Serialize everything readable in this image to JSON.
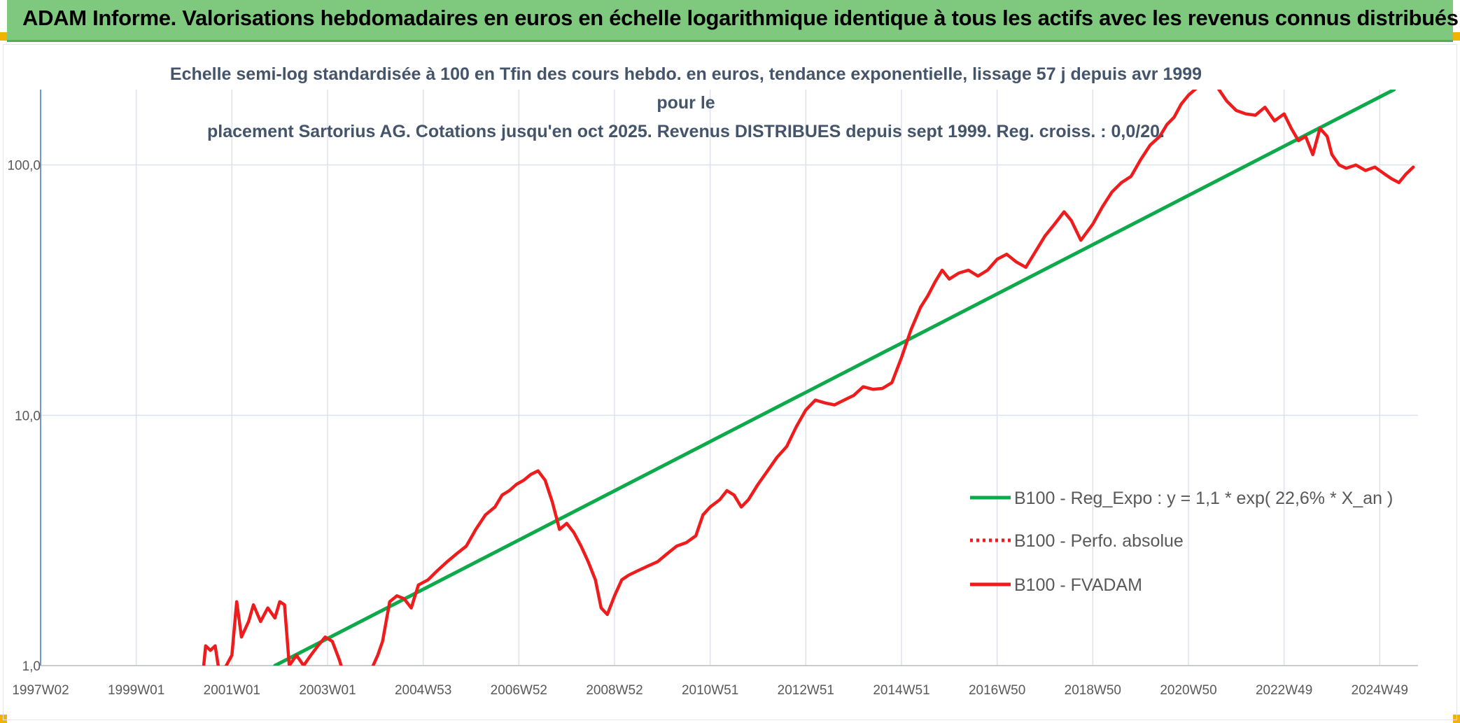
{
  "header": {
    "title": "ADAM Informe. Valorisations hebdomadaires en euros en échelle logarithmique identique à tous les actifs avec les revenus connus distribués"
  },
  "colors": {
    "title_bar": "#7fc97f",
    "trend_line": "#0ea94b",
    "fvadam_line": "#ee1c1c",
    "perfo_line": "#ee1c1c",
    "grid": "#dde2ea",
    "axis": "#4472c4"
  },
  "chart_data": {
    "type": "line",
    "title_line1": "Echelle semi-log standardisée à 100 en Tfin des cours hebdo. en euros, tendance exponentielle, lissage 57 j depuis avr 1999 pour le",
    "title_line2": "placement Sartorius AG. Cotations jusqu'en oct 2025. Revenus DISTRIBUES depuis sept 1999. Reg. croiss. : 0,0/20.",
    "y_scale": "log",
    "ylim": [
      1,
      200
    ],
    "xlim": [
      1997.0,
      2025.8
    ],
    "y_ticks": [
      {
        "value": 1,
        "label": "1,0"
      },
      {
        "value": 10,
        "label": "10,0"
      },
      {
        "value": 100,
        "label": "100,0"
      }
    ],
    "x_ticks": [
      {
        "value": 1997.0,
        "label": "1997W02"
      },
      {
        "value": 1999.0,
        "label": "1999W01"
      },
      {
        "value": 2001.0,
        "label": "2001W01"
      },
      {
        "value": 2003.0,
        "label": "2003W01"
      },
      {
        "value": 2005.0,
        "label": "2004W53"
      },
      {
        "value": 2007.0,
        "label": "2006W52"
      },
      {
        "value": 2009.0,
        "label": "2008W52"
      },
      {
        "value": 2011.0,
        "label": "2010W51"
      },
      {
        "value": 2013.0,
        "label": "2012W51"
      },
      {
        "value": 2015.0,
        "label": "2014W51"
      },
      {
        "value": 2017.0,
        "label": "2016W50"
      },
      {
        "value": 2019.0,
        "label": "2018W50"
      },
      {
        "value": 2021.0,
        "label": "2020W50"
      },
      {
        "value": 2023.0,
        "label": "2022W49"
      },
      {
        "value": 2025.0,
        "label": "2024W49"
      }
    ],
    "grid": true,
    "legend_position": "right",
    "series": [
      {
        "name": "B100 - Reg_Expo : y = 1,1 * exp( 22,6% *  X_an )",
        "style": "solid",
        "color": "#0ea94b",
        "points": [
          [
            2001.9,
            1.0
          ],
          [
            2025.3,
            200.0
          ]
        ]
      },
      {
        "name": "B100 - Perfo. absolue",
        "style": "dotted",
        "color": "#ee1c1c",
        "points": []
      },
      {
        "name": "B100 - FVADAM",
        "style": "solid",
        "color": "#ee1c1c",
        "points": [
          [
            2000.4,
            0.95
          ],
          [
            2000.45,
            1.2
          ],
          [
            2000.55,
            1.15
          ],
          [
            2000.65,
            1.2
          ],
          [
            2000.75,
            0.9
          ],
          [
            2001.0,
            1.1
          ],
          [
            2001.1,
            1.8
          ],
          [
            2001.2,
            1.3
          ],
          [
            2001.35,
            1.5
          ],
          [
            2001.45,
            1.75
          ],
          [
            2001.6,
            1.5
          ],
          [
            2001.75,
            1.7
          ],
          [
            2001.9,
            1.55
          ],
          [
            2002.0,
            1.8
          ],
          [
            2002.1,
            1.75
          ],
          [
            2002.2,
            1.0
          ],
          [
            2002.35,
            1.1
          ],
          [
            2002.5,
            1.0
          ],
          [
            2002.65,
            1.1
          ],
          [
            2002.8,
            1.2
          ],
          [
            2002.95,
            1.3
          ],
          [
            2003.1,
            1.25
          ],
          [
            2003.25,
            1.05
          ],
          [
            2003.35,
            0.9
          ],
          [
            2003.9,
            0.95
          ],
          [
            2004.05,
            1.1
          ],
          [
            2004.15,
            1.25
          ],
          [
            2004.3,
            1.8
          ],
          [
            2004.45,
            1.9
          ],
          [
            2004.6,
            1.85
          ],
          [
            2004.75,
            1.7
          ],
          [
            2004.9,
            2.1
          ],
          [
            2005.1,
            2.2
          ],
          [
            2005.3,
            2.4
          ],
          [
            2005.5,
            2.6
          ],
          [
            2005.7,
            2.8
          ],
          [
            2005.9,
            3.0
          ],
          [
            2006.1,
            3.5
          ],
          [
            2006.3,
            4.0
          ],
          [
            2006.5,
            4.3
          ],
          [
            2006.65,
            4.8
          ],
          [
            2006.8,
            5.0
          ],
          [
            2006.95,
            5.3
          ],
          [
            2007.1,
            5.5
          ],
          [
            2007.25,
            5.8
          ],
          [
            2007.4,
            6.0
          ],
          [
            2007.55,
            5.5
          ],
          [
            2007.7,
            4.5
          ],
          [
            2007.85,
            3.5
          ],
          [
            2008.0,
            3.7
          ],
          [
            2008.15,
            3.4
          ],
          [
            2008.3,
            3.0
          ],
          [
            2008.45,
            2.6
          ],
          [
            2008.6,
            2.2
          ],
          [
            2008.72,
            1.7
          ],
          [
            2008.85,
            1.6
          ],
          [
            2009.0,
            1.9
          ],
          [
            2009.15,
            2.2
          ],
          [
            2009.3,
            2.3
          ],
          [
            2009.5,
            2.4
          ],
          [
            2009.7,
            2.5
          ],
          [
            2009.9,
            2.6
          ],
          [
            2010.1,
            2.8
          ],
          [
            2010.3,
            3.0
          ],
          [
            2010.5,
            3.1
          ],
          [
            2010.7,
            3.3
          ],
          [
            2010.85,
            4.0
          ],
          [
            2011.0,
            4.3
          ],
          [
            2011.2,
            4.6
          ],
          [
            2011.35,
            5.0
          ],
          [
            2011.5,
            4.8
          ],
          [
            2011.65,
            4.3
          ],
          [
            2011.8,
            4.6
          ],
          [
            2012.0,
            5.3
          ],
          [
            2012.2,
            6.0
          ],
          [
            2012.4,
            6.8
          ],
          [
            2012.6,
            7.5
          ],
          [
            2012.8,
            9.0
          ],
          [
            2013.0,
            10.5
          ],
          [
            2013.2,
            11.5
          ],
          [
            2013.4,
            11.2
          ],
          [
            2013.6,
            11.0
          ],
          [
            2013.8,
            11.5
          ],
          [
            2014.0,
            12.0
          ],
          [
            2014.2,
            13.0
          ],
          [
            2014.4,
            12.7
          ],
          [
            2014.6,
            12.8
          ],
          [
            2014.8,
            13.5
          ],
          [
            2015.0,
            17.0
          ],
          [
            2015.2,
            22.0
          ],
          [
            2015.4,
            27.0
          ],
          [
            2015.55,
            30.0
          ],
          [
            2015.7,
            34.0
          ],
          [
            2015.85,
            38.0
          ],
          [
            2016.0,
            35.0
          ],
          [
            2016.2,
            37.0
          ],
          [
            2016.4,
            38.0
          ],
          [
            2016.6,
            36.0
          ],
          [
            2016.8,
            38.0
          ],
          [
            2017.0,
            42.0
          ],
          [
            2017.2,
            44.0
          ],
          [
            2017.4,
            41.0
          ],
          [
            2017.6,
            39.0
          ],
          [
            2017.8,
            45.0
          ],
          [
            2018.0,
            52.0
          ],
          [
            2018.2,
            58.0
          ],
          [
            2018.4,
            65.0
          ],
          [
            2018.55,
            60.0
          ],
          [
            2018.75,
            50.0
          ],
          [
            2019.0,
            58.0
          ],
          [
            2019.2,
            68.0
          ],
          [
            2019.4,
            78.0
          ],
          [
            2019.6,
            85.0
          ],
          [
            2019.8,
            90.0
          ],
          [
            2020.0,
            105.0
          ],
          [
            2020.2,
            120.0
          ],
          [
            2020.4,
            130.0
          ],
          [
            2020.55,
            145.0
          ],
          [
            2020.7,
            155.0
          ],
          [
            2020.85,
            175.0
          ],
          [
            2021.0,
            190.0
          ],
          [
            2021.2,
            205.0
          ],
          [
            2021.6,
            205.0
          ],
          [
            2021.8,
            180.0
          ],
          [
            2022.0,
            165.0
          ],
          [
            2022.2,
            160.0
          ],
          [
            2022.4,
            158.0
          ],
          [
            2022.6,
            170.0
          ],
          [
            2022.8,
            150.0
          ],
          [
            2023.0,
            160.0
          ],
          [
            2023.15,
            140.0
          ],
          [
            2023.3,
            125.0
          ],
          [
            2023.45,
            130.0
          ],
          [
            2023.6,
            110.0
          ],
          [
            2023.75,
            140.0
          ],
          [
            2023.9,
            130.0
          ],
          [
            2024.0,
            110.0
          ],
          [
            2024.15,
            100.0
          ],
          [
            2024.3,
            97.0
          ],
          [
            2024.5,
            100.0
          ],
          [
            2024.7,
            95.0
          ],
          [
            2024.9,
            98.0
          ],
          [
            2025.1,
            92.0
          ],
          [
            2025.25,
            88.0
          ],
          [
            2025.4,
            85.0
          ],
          [
            2025.55,
            92.0
          ],
          [
            2025.7,
            98.0
          ]
        ]
      }
    ]
  }
}
